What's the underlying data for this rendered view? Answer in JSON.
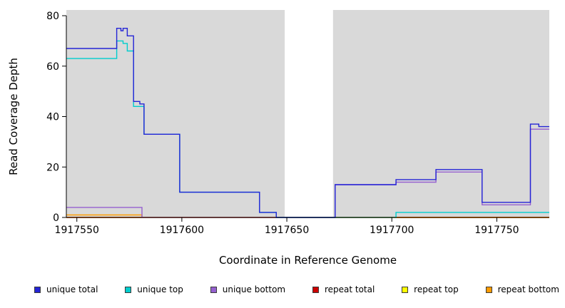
{
  "figure": {
    "x_axis_label": "Coordinate in Reference Genome",
    "y_axis_label": "Read Coverage Depth"
  },
  "chart_data": {
    "type": "line",
    "subtype": "step",
    "title": "",
    "xlabel": "Coordinate in Reference Genome",
    "ylabel": "Read Coverage Depth",
    "xlim": [
      1917545,
      1917775
    ],
    "ylim": [
      0,
      80
    ],
    "x_ticks": [
      1917550,
      1917600,
      1917650,
      1917700,
      1917750
    ],
    "y_ticks": [
      0,
      20,
      40,
      60,
      80
    ],
    "grid": false,
    "legend_position": "bottom",
    "plot_background": "#ffffff",
    "shaded_regions": [
      {
        "x0": 1917545,
        "x1": 1917649,
        "color": "#d9d9d9"
      },
      {
        "x0": 1917672,
        "x1": 1917775,
        "color": "#d9d9d9"
      }
    ],
    "series": [
      {
        "name": "repeat top",
        "color": "#ffff00",
        "points": [
          [
            1917545,
            0
          ]
        ]
      },
      {
        "name": "repeat total",
        "color": "#cc0000",
        "points": [
          [
            1917545,
            0
          ]
        ]
      },
      {
        "name": "repeat bottom",
        "color": "#ff9b00",
        "points": [
          [
            1917545,
            1
          ],
          [
            1917581,
            0
          ]
        ]
      },
      {
        "name": "unique bottom",
        "color": "#9560d0",
        "points": [
          [
            1917545,
            4
          ],
          [
            1917581,
            0
          ],
          [
            1917673,
            13
          ],
          [
            1917702,
            14
          ],
          [
            1917721,
            18
          ],
          [
            1917743,
            5
          ],
          [
            1917766,
            35
          ]
        ]
      },
      {
        "name": "unique top",
        "color": "#00cdcd",
        "points": [
          [
            1917545,
            63
          ],
          [
            1917569,
            70
          ],
          [
            1917572,
            69
          ],
          [
            1917574,
            66
          ],
          [
            1917577,
            44
          ],
          [
            1917582,
            33
          ],
          [
            1917599,
            10
          ],
          [
            1917637,
            2
          ],
          [
            1917645,
            0
          ],
          [
            1917702,
            2
          ]
        ]
      },
      {
        "name": "unique total",
        "color": "#2424d6",
        "points": [
          [
            1917545,
            67
          ],
          [
            1917569,
            75
          ],
          [
            1917571,
            74
          ],
          [
            1917572,
            75
          ],
          [
            1917574,
            72
          ],
          [
            1917577,
            46
          ],
          [
            1917580,
            45
          ],
          [
            1917582,
            33
          ],
          [
            1917599,
            10
          ],
          [
            1917637,
            2
          ],
          [
            1917645,
            0
          ],
          [
            1917673,
            13
          ],
          [
            1917702,
            15
          ],
          [
            1917721,
            19
          ],
          [
            1917743,
            6
          ],
          [
            1917766,
            37
          ],
          [
            1917770,
            36
          ]
        ]
      }
    ]
  },
  "legend": {
    "items": [
      {
        "label": "unique total",
        "color": "#2424d6"
      },
      {
        "label": "unique top",
        "color": "#00cdcd"
      },
      {
        "label": "unique bottom",
        "color": "#9560d0"
      },
      {
        "label": "repeat total",
        "color": "#cc0000"
      },
      {
        "label": "repeat top",
        "color": "#ffff00"
      },
      {
        "label": "repeat bottom",
        "color": "#ff9b00"
      }
    ]
  }
}
